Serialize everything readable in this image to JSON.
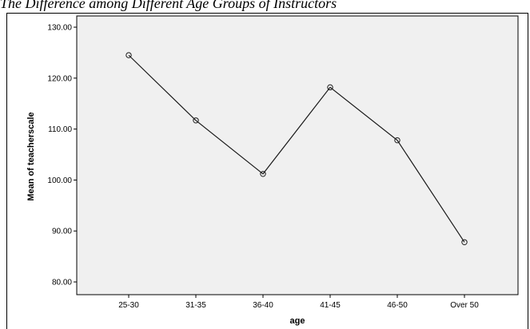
{
  "page": {
    "title": "The Difference among Different Age Groups of Instructors"
  },
  "chart_data": {
    "type": "line",
    "categories": [
      "25-30",
      "31-35",
      "36-40",
      "41-45",
      "46-50",
      "Over 50"
    ],
    "series": [
      {
        "values": [
          124.5,
          111.7,
          101.2,
          118.2,
          107.8,
          87.8
        ]
      }
    ],
    "xlabel": "age",
    "ylabel": "Mean of teacherscale",
    "ylim": [
      77.5,
      132.2
    ],
    "yticks": [
      "80.00",
      "90.00",
      "100.00",
      "110.00",
      "120.00",
      "130.00"
    ],
    "grid": false,
    "colors": {
      "plot_background": "#f0f0f0",
      "line": "#1a1a1a",
      "marker": "#1a1a1a"
    }
  }
}
